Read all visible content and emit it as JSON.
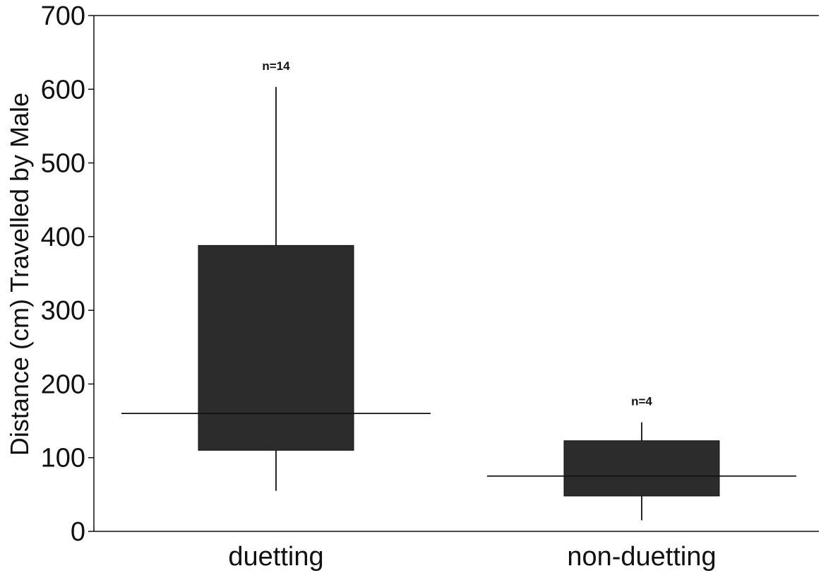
{
  "chart_data": {
    "type": "boxplot",
    "title": "",
    "xlabel": "",
    "ylabel": "Distance (cm) Travelled by Male",
    "ylim": [
      0,
      700
    ],
    "yticks": [
      0,
      100,
      200,
      300,
      400,
      500,
      600,
      700
    ],
    "categories": [
      "duetting",
      "non-duetting"
    ],
    "boxes": [
      {
        "category": "duetting",
        "n_label": "n=14",
        "whisker_low": 55,
        "q1": 110,
        "median": 160,
        "q3": 388,
        "whisker_high": 603
      },
      {
        "category": "non-duetting",
        "n_label": "n=4",
        "whisker_low": 15,
        "q1": 48,
        "median": 75,
        "q3": 123,
        "whisker_high": 148
      }
    ],
    "grid": false,
    "legend": "none",
    "colors": {
      "box_fill": "#2c2c2c",
      "line": "#111111",
      "background": "#ffffff"
    }
  }
}
